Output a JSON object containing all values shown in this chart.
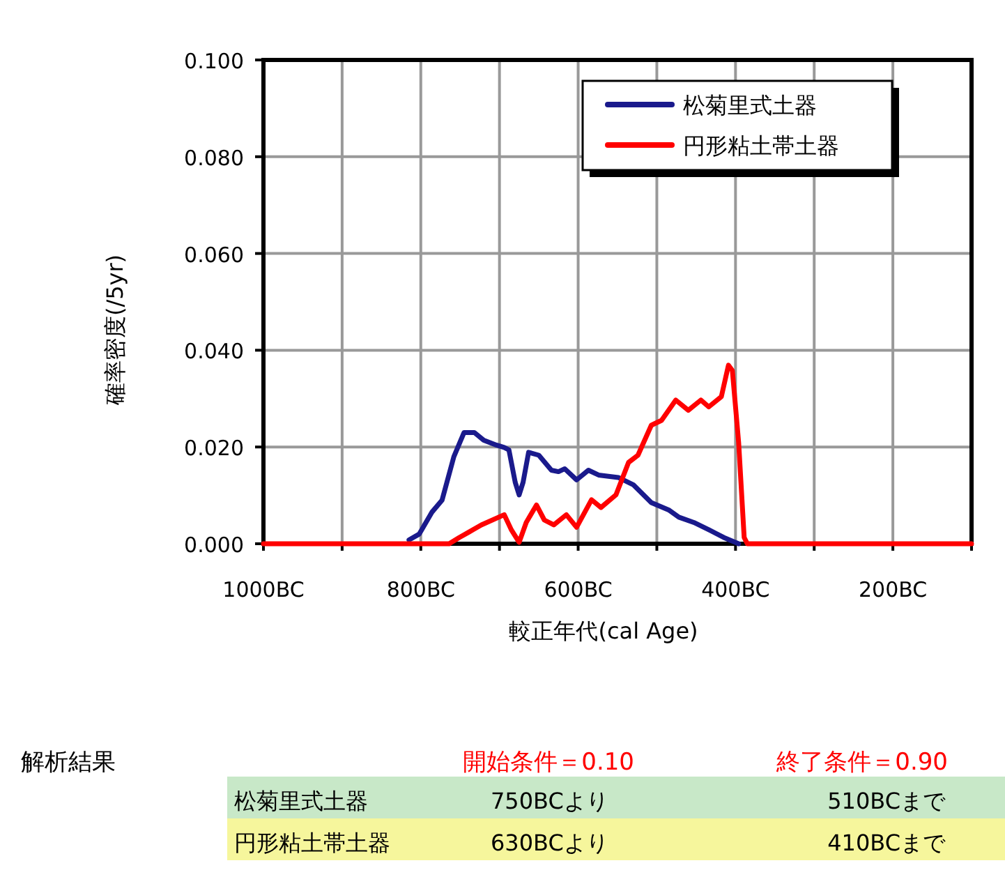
{
  "chart_data": {
    "type": "line",
    "xlabel": "較正年代(cal Age)",
    "ylabel": "確率密度(/5yr)",
    "xlim": [
      -1000,
      -100
    ],
    "ylim": [
      0,
      0.1
    ],
    "xticks": [
      {
        "value": -1000,
        "label": "1000BC"
      },
      {
        "value": -900,
        "label": null
      },
      {
        "value": -800,
        "label": "800BC"
      },
      {
        "value": -700,
        "label": null
      },
      {
        "value": -600,
        "label": "600BC"
      },
      {
        "value": -500,
        "label": null
      },
      {
        "value": -400,
        "label": "400BC"
      },
      {
        "value": -300,
        "label": null
      },
      {
        "value": -200,
        "label": "200BC"
      },
      {
        "value": -100,
        "label": null
      }
    ],
    "yticks": [
      {
        "value": 0,
        "label": "0.000"
      },
      {
        "value": 0.02,
        "label": "0.020"
      },
      {
        "value": 0.04,
        "label": "0.040"
      },
      {
        "value": 0.06,
        "label": "0.060"
      },
      {
        "value": 0.08,
        "label": "0.080"
      },
      {
        "value": 0.1,
        "label": "0.100"
      }
    ],
    "grid": true,
    "legend": "top right",
    "line_style": "solid",
    "marker": "none",
    "series": [
      {
        "name": "松菊里式土器",
        "color": "#1a1a8c",
        "x": [
          -815,
          -802,
          -786,
          -773,
          -758,
          -745,
          -732,
          -720,
          -704,
          -694,
          -688,
          -680,
          -675,
          -670,
          -663,
          -650,
          -634,
          -625,
          -617,
          -602,
          -587,
          -574,
          -549,
          -530,
          -507,
          -485,
          -472,
          -453,
          -434,
          -415,
          -396
        ],
        "values": [
          0.0008,
          0.002,
          0.0065,
          0.009,
          0.018,
          0.023,
          0.023,
          0.0214,
          0.0204,
          0.0199,
          0.0194,
          0.0127,
          0.0101,
          0.0127,
          0.0189,
          0.0183,
          0.0152,
          0.0149,
          0.0155,
          0.0132,
          0.0152,
          0.0142,
          0.0137,
          0.0122,
          0.0085,
          0.007,
          0.0055,
          0.0044,
          0.0029,
          0.0013,
          0
        ]
      },
      {
        "name": "円形粘土帯土器",
        "color": "#ff0000",
        "x": [
          -1000,
          -764,
          -751,
          -739,
          -723,
          -694,
          -685,
          -675,
          -666,
          -653,
          -643,
          -631,
          -615,
          -602,
          -583,
          -571,
          -552,
          -536,
          -524,
          -507,
          -494,
          -476,
          -460,
          -444,
          -434,
          -418,
          -409,
          -404,
          -396,
          -389,
          -385,
          -100
        ],
        "values": [
          0,
          0,
          0.0013,
          0.0024,
          0.0039,
          0.006,
          0.0029,
          0.0003,
          0.0044,
          0.008,
          0.0049,
          0.0039,
          0.006,
          0.0034,
          0.0091,
          0.0075,
          0.0101,
          0.0168,
          0.0183,
          0.0245,
          0.0255,
          0.0297,
          0.0276,
          0.0297,
          0.0283,
          0.0304,
          0.0369,
          0.0358,
          0.0209,
          0.0013,
          0,
          0
        ]
      }
    ],
    "annotations": [
      "解析結果",
      "開始条件＝0.10",
      "終了条件＝0.90",
      "松菊里式土器",
      "750BCより",
      "510BCまで",
      "円形粘土帯土器",
      "630BCより",
      "410BCまで"
    ]
  }
}
